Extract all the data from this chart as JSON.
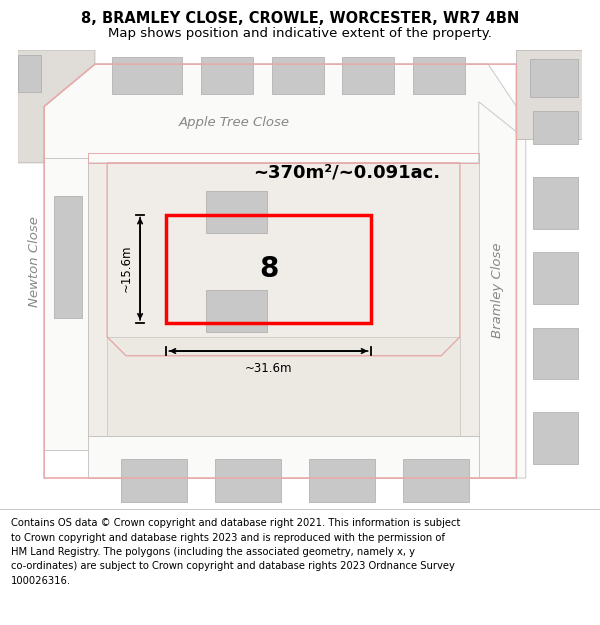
{
  "title": "8, BRAMLEY CLOSE, CROWLE, WORCESTER, WR7 4BN",
  "subtitle": "Map shows position and indicative extent of the property.",
  "footer": "Contains OS data © Crown copyright and database right 2021. This information is subject\nto Crown copyright and database rights 2023 and is reproduced with the permission of\nHM Land Registry. The polygons (including the associated geometry, namely x, y\nco-ordinates) are subject to Crown copyright and database rights 2023 Ordnance Survey\n100026316.",
  "area_label": "~370m²/~0.091ac.",
  "plot_number": "8",
  "dim_width": "~31.6m",
  "dim_height": "~15.6m",
  "street_apple": "Apple Tree Close",
  "street_newton": "Newton Close",
  "street_bramley": "Bramley Close",
  "map_bg": "#ede9e4",
  "road_white": "#f5f3f0",
  "road_white2": "#fafaf8",
  "gray_bldg": "#c8c8c8",
  "pink_line": "#e8aaaa",
  "red_plot": "#ff0000",
  "title_fontsize": 10.5,
  "subtitle_fontsize": 9.5,
  "footer_fontsize": 7.2,
  "street_fontsize": 9.5,
  "area_fontsize": 13,
  "number_fontsize": 20,
  "dim_fontsize": 8.5
}
